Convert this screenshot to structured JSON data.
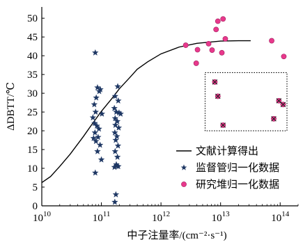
{
  "chart_data": {
    "type": "scatter",
    "x_scale": "log",
    "xlim": [
      10000000000.0,
      200000000000000.0
    ],
    "ylim": [
      0,
      53
    ],
    "xlabel": "中子注量率/(cm⁻²·s⁻¹)",
    "ylabel": "ΔDBTT/℃",
    "x_ticks": [
      {
        "value": 10000000000.0,
        "base": "10",
        "exp": "10"
      },
      {
        "value": 100000000000.0,
        "base": "10",
        "exp": "11"
      },
      {
        "value": 1000000000000.0,
        "base": "10",
        "exp": "12"
      },
      {
        "value": 10000000000000.0,
        "base": "10",
        "exp": "13"
      },
      {
        "value": 100000000000000.0,
        "base": "10",
        "exp": "14"
      }
    ],
    "y_ticks": [
      0,
      5,
      10,
      15,
      20,
      25,
      30,
      35,
      40,
      45,
      50
    ],
    "legend_position": "lower-right",
    "series": [
      {
        "name": "文献计算得出",
        "kind": "line",
        "color": "#000000",
        "points": [
          [
            10000000000.0,
            6.2
          ],
          [
            14000000000.0,
            7.8
          ],
          [
            20000000000.0,
            10.5
          ],
          [
            30000000000.0,
            13.8
          ],
          [
            50000000000.0,
            18.5
          ],
          [
            70000000000.0,
            21.8
          ],
          [
            100000000000.0,
            25.2
          ],
          [
            150000000000.0,
            28.6
          ],
          [
            200000000000.0,
            31.2
          ],
          [
            300000000000.0,
            34.2
          ],
          [
            400000000000.0,
            36.4
          ],
          [
            600000000000.0,
            38.4
          ],
          [
            1000000000000.0,
            40.5
          ],
          [
            2000000000000.0,
            42.3
          ],
          [
            4000000000000.0,
            43.3
          ],
          [
            10000000000000.0,
            43.9
          ],
          [
            20000000000000.0,
            44.0
          ],
          [
            32000000000000.0,
            44.0
          ]
        ]
      },
      {
        "name": "监督管归一化数据",
        "kind": "star",
        "color": "#1f3864",
        "points": [
          [
            79000000000.0,
            40.8
          ],
          [
            86000000000.0,
            31.5
          ],
          [
            92000000000.0,
            30.5
          ],
          [
            96000000000.0,
            31.0
          ],
          [
            76000000000.0,
            27.0
          ],
          [
            82000000000.0,
            28.8
          ],
          [
            72000000000.0,
            23.5
          ],
          [
            80000000000.0,
            25.0
          ],
          [
            102000000000.0,
            24.5
          ],
          [
            77000000000.0,
            22.0
          ],
          [
            84000000000.0,
            21.3
          ],
          [
            91000000000.0,
            20.5
          ],
          [
            78000000000.0,
            19.5
          ],
          [
            88000000000.0,
            18.3
          ],
          [
            74000000000.0,
            18.0
          ],
          [
            81000000000.0,
            17.2
          ],
          [
            95000000000.0,
            16.2
          ],
          [
            86000000000.0,
            14.5
          ],
          [
            100000000000.0,
            12.3
          ],
          [
            79000000000.0,
            8.8
          ],
          [
            188000000000.0,
            31.8
          ],
          [
            170000000000.0,
            29.2
          ],
          [
            192000000000.0,
            28.0
          ],
          [
            165000000000.0,
            26.0
          ],
          [
            178000000000.0,
            25.0
          ],
          [
            198000000000.0,
            24.8
          ],
          [
            210000000000.0,
            24.5
          ],
          [
            170000000000.0,
            23.3
          ],
          [
            185000000000.0,
            22.5
          ],
          [
            172000000000.0,
            21.5
          ],
          [
            195000000000.0,
            20.8
          ],
          [
            168000000000.0,
            19.5
          ],
          [
            182000000000.0,
            18.5
          ],
          [
            174000000000.0,
            17.5
          ],
          [
            190000000000.0,
            16.0
          ],
          [
            170000000000.0,
            14.5
          ],
          [
            186000000000.0,
            13.0
          ],
          [
            178000000000.0,
            11.0
          ],
          [
            192000000000.0,
            10.5
          ],
          [
            166000000000.0,
            10.3
          ],
          [
            180000000000.0,
            10.6
          ],
          [
            175000000000.0,
            3.0
          ],
          [
            168000000000.0,
            1.0
          ]
        ]
      },
      {
        "name": "研究堆归一化数据",
        "kind": "circle",
        "color": "#e8388c",
        "points": [
          [
            2600000000000.0,
            42.8
          ],
          [
            3900000000000.0,
            38.0
          ],
          [
            4100000000000.0,
            41.6
          ],
          [
            6300000000000.0,
            43.2
          ],
          [
            7200000000000.0,
            41.5
          ],
          [
            8400000000000.0,
            47.0
          ],
          [
            9000000000000.0,
            49.2
          ],
          [
            11000000000000.0,
            49.8
          ],
          [
            12000000000000.0,
            44.5
          ],
          [
            10500000000000.0,
            40.8
          ],
          [
            72000000000000.0,
            44.0
          ],
          [
            115000000000000.0,
            39.8
          ],
          [
            8000000000000.0,
            33.0
          ],
          [
            9000000000000.0,
            29.2
          ],
          [
            11000000000000.0,
            21.5
          ],
          [
            78000000000000.0,
            23.2
          ],
          [
            95000000000000.0,
            28.0
          ],
          [
            112000000000000.0,
            27.0
          ]
        ]
      }
    ],
    "crossed_points": [
      [
        8000000000000.0,
        33.0
      ],
      [
        9000000000000.0,
        29.2
      ],
      [
        11000000000000.0,
        21.5
      ],
      [
        78000000000000.0,
        23.2
      ],
      [
        95000000000000.0,
        28.0
      ],
      [
        112000000000000.0,
        27.0
      ]
    ],
    "highlight_box": {
      "x": [
        5500000000000.0,
        130000000000000.0
      ],
      "y": [
        20.0,
        35.5
      ]
    }
  }
}
